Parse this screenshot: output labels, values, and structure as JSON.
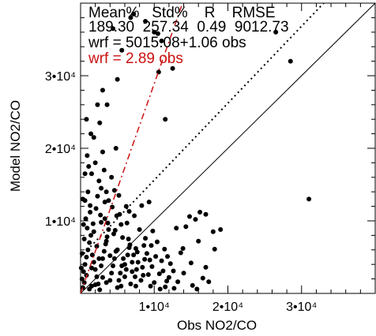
{
  "chart_data": {
    "type": "scatter",
    "xlabel": "Obs NO2/CO",
    "ylabel": "Model NO2/CO",
    "xlim": [
      0,
      40000
    ],
    "ylim": [
      0,
      40000
    ],
    "x_ticks": [
      10000,
      20000,
      30000
    ],
    "x_tick_labels": [
      "1•10⁴",
      "2•10⁴",
      "3•10⁴"
    ],
    "y_ticks": [
      10000,
      20000,
      30000
    ],
    "y_tick_labels": [
      "1•10⁴",
      "2•10⁴",
      "3•10⁴"
    ],
    "stats_header": "Mean%   Std%    R    RMSE",
    "stats_values": "189.30  257.34  0.49  9012.73",
    "fit_label": "wrf = 5015.08+1.06 obs",
    "ratio_label": "wrf = 2.89 obs",
    "ratio_color": "#cc1111",
    "lines": [
      {
        "kind": "one_to_one",
        "intercept": 0,
        "slope": 1.0,
        "style": "solid",
        "color": "#000000"
      },
      {
        "kind": "linear_fit",
        "intercept": 5015.08,
        "slope": 1.06,
        "style": "dotted",
        "color": "#000000"
      },
      {
        "kind": "ratio_fit",
        "intercept": 0,
        "slope": 2.89,
        "style": "dashdot",
        "color": "#cc1111"
      }
    ],
    "points": [
      [
        300,
        800
      ],
      [
        500,
        1500
      ],
      [
        800,
        2500
      ],
      [
        1200,
        600
      ],
      [
        1500,
        3500
      ],
      [
        2000,
        1200
      ],
      [
        2500,
        4800
      ],
      [
        3000,
        2200
      ],
      [
        500,
        7500
      ],
      [
        900,
        9000
      ],
      [
        1300,
        11200
      ],
      [
        600,
        12800
      ],
      [
        1800,
        8500
      ],
      [
        2200,
        6500
      ],
      [
        2800,
        9800
      ],
      [
        3500,
        7200
      ],
      [
        4000,
        5200
      ],
      [
        4500,
        8200
      ],
      [
        5000,
        6000
      ],
      [
        5500,
        9500
      ],
      [
        6000,
        4000
      ],
      [
        6500,
        7500
      ],
      [
        7000,
        3000
      ],
      [
        7500,
        6200
      ],
      [
        8000,
        8800
      ],
      [
        8500,
        2500
      ],
      [
        9000,
        5500
      ],
      [
        10000,
        1500
      ],
      [
        11000,
        4500
      ],
      [
        12000,
        2200
      ],
      [
        13000,
        9000
      ],
      [
        14000,
        2800
      ],
      [
        15000,
        4200
      ],
      [
        16000,
        7200
      ],
      [
        17000,
        3600
      ],
      [
        18000,
        8500
      ],
      [
        19000,
        8800
      ],
      [
        31000,
        13000
      ],
      [
        28500,
        32000
      ],
      [
        26500,
        36000
      ],
      [
        1000,
        14000
      ],
      [
        1500,
        16500
      ],
      [
        2000,
        18000
      ],
      [
        2500,
        15500
      ],
      [
        3000,
        19500
      ],
      [
        1800,
        21500
      ],
      [
        800,
        24000
      ],
      [
        2600,
        23500
      ],
      [
        3200,
        17000
      ],
      [
        4200,
        16000
      ],
      [
        5200,
        13500
      ],
      [
        6200,
        12000
      ],
      [
        4800,
        20000
      ],
      [
        3600,
        26000
      ],
      [
        3000,
        28000
      ],
      [
        5000,
        29500
      ],
      [
        5600,
        33500
      ],
      [
        4400,
        36500
      ],
      [
        6800,
        38000
      ],
      [
        7200,
        38500
      ],
      [
        8800,
        37500
      ],
      [
        10000,
        36000
      ],
      [
        10500,
        35800
      ],
      [
        11000,
        34800
      ],
      [
        12500,
        31000
      ],
      [
        11500,
        24000
      ],
      [
        10600,
        30500
      ],
      [
        14300,
        9200
      ],
      [
        14800,
        10600
      ],
      [
        13900,
        6200
      ],
      [
        16200,
        11200
      ],
      [
        15600,
        10200
      ],
      [
        17000,
        10900
      ],
      [
        9300,
        12600
      ],
      [
        8300,
        12100
      ],
      [
        7300,
        10700
      ],
      [
        6300,
        9700
      ],
      [
        5300,
        10900
      ],
      [
        4300,
        11900
      ],
      [
        3300,
        12600
      ],
      [
        2300,
        13400
      ],
      [
        1300,
        12100
      ],
      [
        300,
        13000
      ],
      [
        700,
        10300
      ],
      [
        1700,
        9600
      ],
      [
        2700,
        10800
      ],
      [
        3700,
        9700
      ],
      [
        4700,
        8700
      ],
      [
        5700,
        7700
      ],
      [
        6700,
        6700
      ],
      [
        7700,
        5700
      ],
      [
        8700,
        4700
      ],
      [
        9700,
        3700
      ],
      [
        10700,
        2700
      ],
      [
        11700,
        1700
      ],
      [
        12700,
        700
      ],
      [
        200,
        2000
      ],
      [
        400,
        3000
      ],
      [
        600,
        4000
      ],
      [
        800,
        5000
      ],
      [
        1000,
        6000
      ],
      [
        1200,
        7000
      ],
      [
        1400,
        8000
      ],
      [
        1600,
        5300
      ],
      [
        1800,
        4300
      ],
      [
        2000,
        3300
      ],
      [
        2200,
        2300
      ],
      [
        2400,
        1300
      ],
      [
        2600,
        500
      ],
      [
        2800,
        3800
      ],
      [
        3000,
        4800
      ],
      [
        3200,
        5800
      ],
      [
        3400,
        6800
      ],
      [
        3600,
        7800
      ],
      [
        3800,
        8800
      ],
      [
        4000,
        1800
      ],
      [
        4200,
        2800
      ],
      [
        4400,
        3800
      ],
      [
        4600,
        4800
      ],
      [
        4800,
        5800
      ],
      [
        5000,
        800
      ],
      [
        5200,
        1800
      ],
      [
        5400,
        2800
      ],
      [
        5600,
        3800
      ],
      [
        5800,
        4800
      ],
      [
        6000,
        2300
      ],
      [
        6200,
        3300
      ],
      [
        6400,
        5300
      ],
      [
        6600,
        6300
      ],
      [
        6800,
        1300
      ],
      [
        7000,
        4300
      ],
      [
        7200,
        5300
      ],
      [
        7400,
        2300
      ],
      [
        7600,
        3300
      ],
      [
        7800,
        4300
      ],
      [
        8200,
        1800
      ],
      [
        8400,
        3600
      ],
      [
        8600,
        6600
      ],
      [
        8800,
        7600
      ],
      [
        9200,
        2600
      ],
      [
        9400,
        4600
      ],
      [
        9600,
        6600
      ],
      [
        9800,
        8600
      ],
      [
        10200,
        5100
      ],
      [
        10400,
        7100
      ],
      [
        10800,
        600
      ],
      [
        11200,
        3100
      ],
      [
        11400,
        6100
      ],
      [
        11800,
        5100
      ],
      [
        12200,
        4100
      ],
      [
        12600,
        3100
      ],
      [
        13200,
        1600
      ],
      [
        13600,
        5600
      ],
      [
        15200,
        1100
      ],
      [
        15800,
        600
      ],
      [
        16600,
        2100
      ],
      [
        17400,
        1600
      ],
      [
        18200,
        6100
      ],
      [
        900,
        19000
      ],
      [
        1400,
        22000
      ],
      [
        2300,
        26000
      ],
      [
        2800,
        14500
      ],
      [
        3500,
        14000
      ],
      [
        600,
        16500
      ],
      [
        1100,
        17500
      ],
      [
        3800,
        12800
      ],
      [
        4600,
        14200
      ],
      [
        2100,
        11700
      ],
      [
        3300,
        10300
      ],
      [
        4900,
        10700
      ],
      [
        6600,
        11300
      ],
      [
        400,
        9500
      ],
      [
        200,
        5500
      ],
      [
        100,
        3500
      ],
      [
        1500,
        1000
      ],
      [
        3500,
        1500
      ],
      [
        5500,
        1000
      ],
      [
        7500,
        1000
      ],
      [
        9500,
        1000
      ],
      [
        11500,
        900
      ]
    ]
  }
}
